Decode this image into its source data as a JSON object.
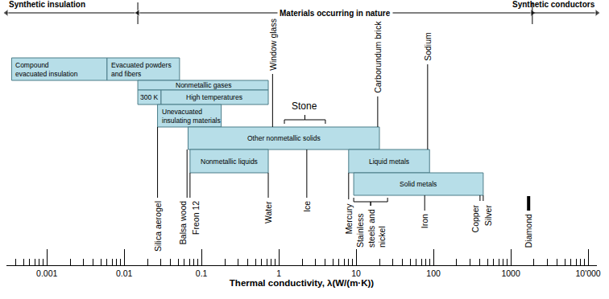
{
  "chart_data": {
    "type": "range",
    "log": "x",
    "grid": false,
    "color": "#b7dee8",
    "xlabel": "Thermal conductivity, λ(W/(m·K))",
    "xlim": [
      0.0003,
      13000
    ],
    "xticks": [
      0.001,
      0.01,
      0.1,
      1,
      10,
      100,
      1000,
      {
        "value": 10000,
        "label": "10'000"
      }
    ],
    "regions": [
      {
        "label": "Synthetic insulation",
        "from": 0.0003,
        "to": 0.015
      },
      {
        "label": "Materials occurring in nature",
        "from": 0.015,
        "to": 1900
      },
      {
        "label": "Synthetic conductors",
        "from": 1900,
        "to": 13000
      }
    ],
    "rows": [
      [
        {
          "label": "Compound\nevacuated insulation",
          "from": 0.00035,
          "to": 0.006
        },
        {
          "label": "Evacuated powders\nand fibers",
          "from": 0.006,
          "to": 0.052
        }
      ],
      [
        {
          "label": "Nonmetallic gases",
          "from": 0.015,
          "to": 0.73
        }
      ],
      [
        {
          "label": "300 K",
          "from": 0.015,
          "to": 0.03
        },
        {
          "label": "High temperatures",
          "from": 0.03,
          "to": 0.73
        }
      ],
      [
        {
          "label": "Unevacuated\ninsulating materials",
          "from": 0.027,
          "to": 0.18
        }
      ],
      [
        {
          "label": "Other nonmetallic solids",
          "from": 0.067,
          "to": 20
        }
      ],
      [
        {
          "label": "Nonmetallic liquids",
          "from": 0.071,
          "to": 0.73
        },
        {
          "label": "Liquid metals",
          "from": 8,
          "to": 89
        }
      ],
      [
        {
          "label": "Solid metals",
          "from": 9.3,
          "to": 440
        }
      ]
    ],
    "markers": [
      {
        "label": "Silica aerogel",
        "value": 0.027
      },
      {
        "label": "Balsa wood",
        "value": 0.065
      },
      {
        "label": "Freon 12",
        "value": 0.071
      },
      {
        "label": "Window glass",
        "value": 0.83
      },
      {
        "label": "Water",
        "value": 0.73
      },
      {
        "label": "Ice",
        "value": 2.3
      },
      {
        "label": "Carborundum brick",
        "value": 19
      },
      {
        "label": "Sodium",
        "value": 84
      },
      {
        "label": "Mercury",
        "value": 8
      },
      {
        "label": "Iron",
        "value": 77
      },
      {
        "label": "Copper",
        "value": 400
      },
      {
        "label": "Silver",
        "value": 440
      },
      {
        "label": "Diamond",
        "value": 1700
      }
    ],
    "ranges": [
      {
        "label": "Stone",
        "from": 1.18,
        "to": 4
      },
      {
        "label": "Stainless\nsteels and\nnickel",
        "from": 9.3,
        "to": 25.5
      }
    ]
  }
}
